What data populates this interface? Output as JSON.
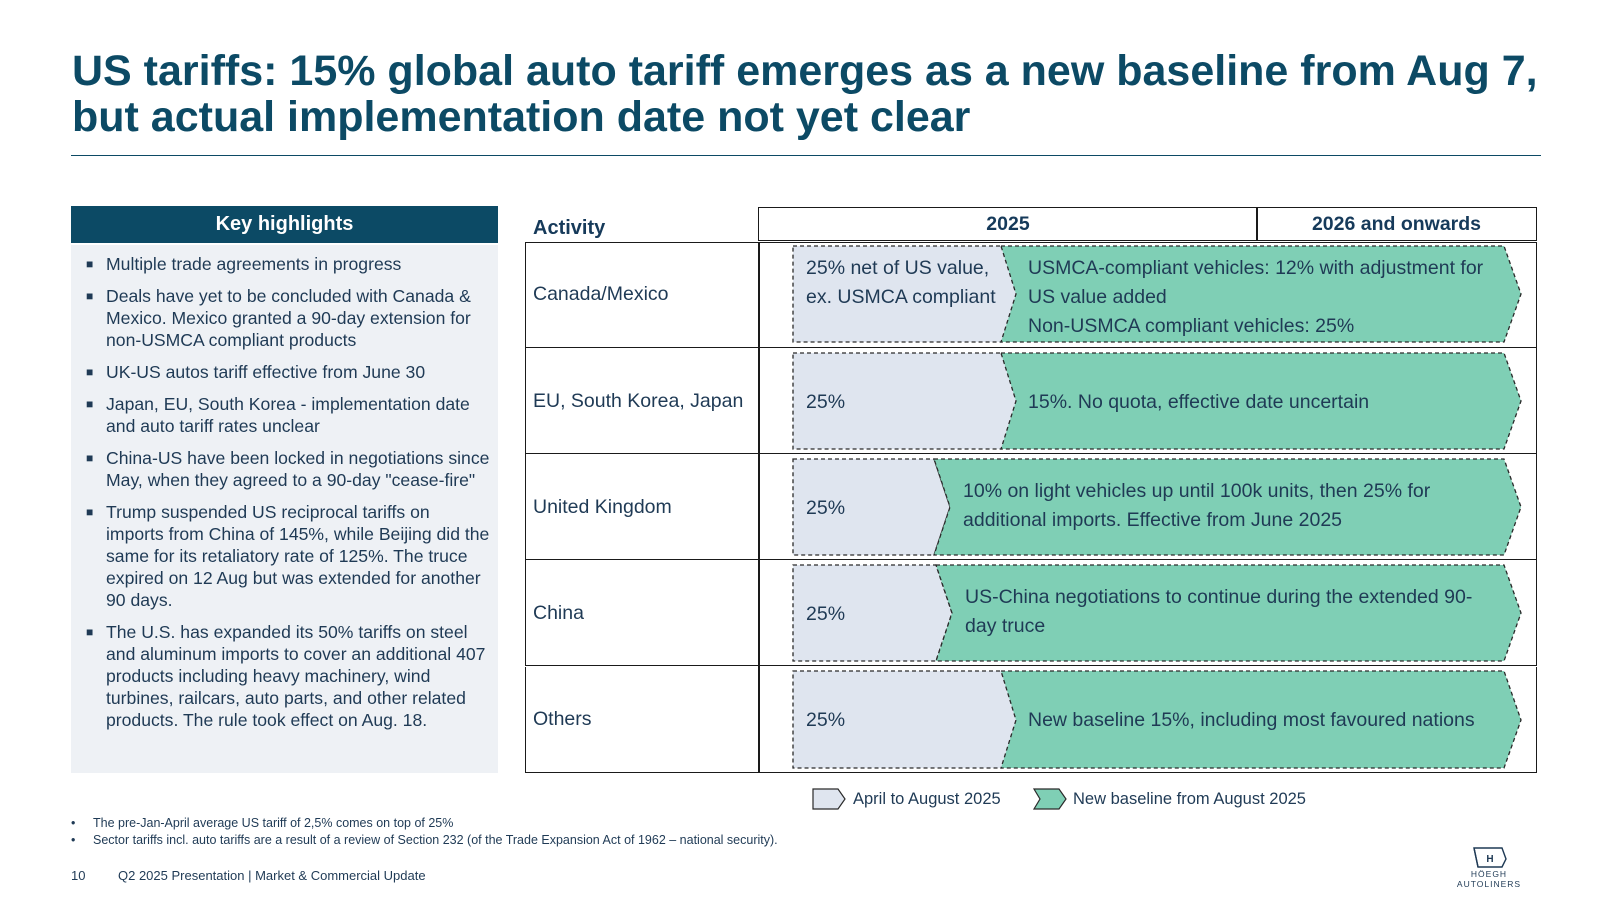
{
  "title": "US tariffs: 15% global auto tariff emerges as a new baseline from Aug 7, but actual implementation date not yet clear",
  "key_highlights": {
    "header": "Key highlights",
    "bullet_symbol": "■",
    "items": [
      "Multiple trade agreements in progress",
      "Deals have yet to be concluded with Canada & Mexico. Mexico granted a 90-day extension for non-USMCA compliant products",
      "UK-US autos tariff effective from June 30",
      "Japan, EU, South Korea - implementation date and auto tariff rates unclear",
      "China-US have been locked in negotiations since May, when they agreed to a 90-day \"cease-fire\"",
      "Trump suspended US reciprocal tariffs on imports from China of 145%, while Beijing did the same for its retaliatory rate of 125%. The truce expired on 12 Aug but was extended for another 90 days.",
      "The U.S. has expanded its 50% tariffs on steel and aluminum imports to cover an additional 407 products including heavy machinery, wind turbines, railcars, auto parts, and other related products. The rule took effect on Aug. 18."
    ]
  },
  "table": {
    "header_activity": "Activity",
    "header_2025": "2025",
    "header_2026": "2026 and onwards",
    "rows": [
      {
        "label": "Canada/Mexico",
        "april_aug": "25% net of US value, ex. USMCA compliant",
        "new_baseline": "USMCA-compliant vehicles: 12% with adjustment for US value added\nNon-USMCA compliant vehicles:  25%"
      },
      {
        "label": "EU, South Korea, Japan",
        "april_aug": "25%",
        "new_baseline": "15%. No quota, effective date uncertain"
      },
      {
        "label": "United Kingdom",
        "april_aug": "25%",
        "new_baseline": "10% on light vehicles up until 100k units, then 25% for additional imports. Effective from June 2025"
      },
      {
        "label": "China",
        "april_aug": "25%",
        "new_baseline": "US-China negotiations to continue during the extended 90-day truce"
      },
      {
        "label": "Others",
        "april_aug": "25%",
        "new_baseline": "New baseline 15%, including most favoured nations"
      }
    ]
  },
  "legend": {
    "april_aug": "April to August 2025",
    "new_baseline": "New baseline from August 2025"
  },
  "colors": {
    "navy": "#0c4a65",
    "april_fill": "#dfe5ef",
    "baseline_fill": "#7fcfb5",
    "panel_bg": "#eef1f5"
  },
  "notes": {
    "bullet": "•",
    "items": [
      "The pre-Jan-April average US tariff of 2,5% comes on top of 25%",
      "Sector tariffs incl. auto tariffs are a result of a review of Section 232 (of the Trade Expansion Act of 1962 – national security)."
    ]
  },
  "footer": {
    "page_number": "10",
    "text": "Q2 2025 Presentation | Market & Commercial Update",
    "logo_text": "HÖEGH AUTOLINERS",
    "logo_mark": "H"
  }
}
